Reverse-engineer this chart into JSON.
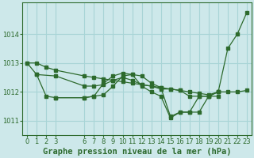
{
  "background_color": "#cde8ea",
  "grid_color": "#a8d4d6",
  "line_color": "#2d6a2d",
  "title": "Graphe pression niveau de la mer (hPa)",
  "ylim": [
    1010.5,
    1015.1
  ],
  "xlim": [
    -0.5,
    23.5
  ],
  "yticks": [
    1011,
    1012,
    1013,
    1014
  ],
  "xticks": [
    0,
    1,
    2,
    3,
    6,
    7,
    8,
    9,
    10,
    11,
    12,
    13,
    14,
    15,
    16,
    17,
    18,
    19,
    20,
    21,
    22,
    23
  ],
  "series": [
    {
      "x": [
        0,
        1,
        2,
        3,
        6,
        7,
        8,
        9,
        10,
        11,
        12,
        13,
        14,
        15,
        16,
        17,
        18,
        19,
        20,
        21,
        22,
        23
      ],
      "y": [
        1013.0,
        1013.0,
        1012.85,
        1012.75,
        1012.55,
        1012.5,
        1012.45,
        1012.4,
        1012.35,
        1012.3,
        1012.25,
        1012.2,
        1012.15,
        1012.1,
        1012.05,
        1012.0,
        1011.95,
        1011.9,
        1012.0,
        1012.0,
        1012.0,
        1012.05
      ]
    },
    {
      "x": [
        0,
        1,
        2,
        3,
        6,
        7,
        8,
        9,
        10,
        11,
        12,
        13,
        14,
        15,
        16,
        17,
        18,
        19,
        20,
        21,
        22,
        23
      ],
      "y": [
        1013.0,
        1012.6,
        1011.85,
        1011.8,
        1011.8,
        1011.85,
        1012.3,
        1012.55,
        1012.65,
        1012.6,
        1012.55,
        1012.3,
        1012.15,
        1011.15,
        1011.3,
        1011.3,
        1011.3,
        1011.85,
        1012.0,
        1013.5,
        1014.0,
        1014.75
      ]
    },
    {
      "x": [
        1,
        3,
        6,
        7,
        8,
        9,
        10,
        11,
        12,
        13,
        14,
        15,
        16,
        17,
        18,
        19,
        20
      ],
      "y": [
        1012.6,
        1012.55,
        1012.2,
        1012.2,
        1012.25,
        1012.4,
        1012.5,
        1012.4,
        1012.25,
        1012.2,
        1012.1,
        1012.1,
        1012.05,
        1011.85,
        1011.85,
        1011.85,
        1012.0
      ]
    },
    {
      "x": [
        3,
        6,
        7,
        8,
        9,
        10,
        11,
        12,
        13,
        14,
        15,
        16,
        17,
        18,
        19,
        20
      ],
      "y": [
        1011.8,
        1011.8,
        1011.85,
        1011.9,
        1012.2,
        1012.55,
        1012.6,
        1012.2,
        1012.0,
        1011.85,
        1011.1,
        1011.3,
        1011.3,
        1011.85,
        1011.85,
        1011.85
      ]
    }
  ],
  "title_fontsize": 7.5,
  "tick_fontsize": 6
}
